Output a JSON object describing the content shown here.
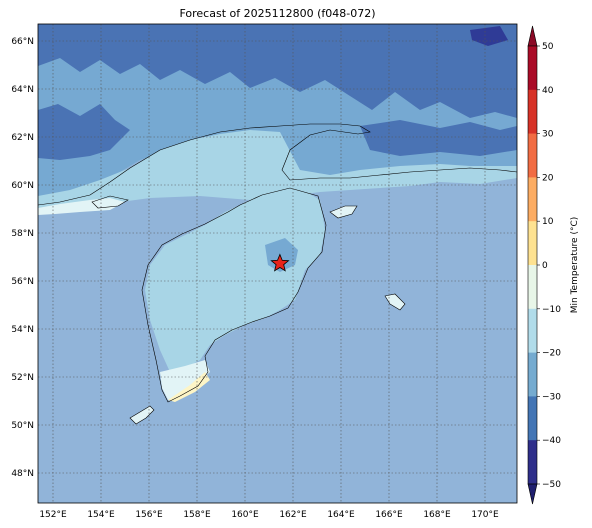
{
  "title": "Forecast of 2025112800 (f048-072)",
  "lon_ticks": [
    "152°E",
    "154°E",
    "156°E",
    "158°E",
    "160°E",
    "162°E",
    "164°E",
    "166°E",
    "168°E",
    "170°E"
  ],
  "lat_ticks": [
    "66°N",
    "64°N",
    "62°N",
    "60°N",
    "58°N",
    "56°N",
    "54°N",
    "52°N",
    "50°N",
    "48°N"
  ],
  "colorbar": {
    "label": "Min Temperature (°C)",
    "ticks": [
      "50",
      "40",
      "30",
      "20",
      "10",
      "0",
      "−10",
      "−20",
      "−30",
      "−40",
      "−50"
    ],
    "colors": [
      "#aa0b27",
      "#d73227",
      "#f16c43",
      "#fcac62",
      "#fee291",
      "#e8f6e8",
      "#b1dcea",
      "#75abd0",
      "#4375b5",
      "#2e2e8a"
    ]
  },
  "map": {
    "extent": {
      "lon_min": 151.3,
      "lon_max": 171.3,
      "lat_min": 46.7,
      "lat_max": 66.7
    },
    "marker": {
      "lon": 161.4,
      "lat": 56.7,
      "shape": "star",
      "color": "#e8231b"
    },
    "colors": {
      "deep": "#4a73b4",
      "mid": "#76a9d2",
      "light": "#a8d5e6",
      "base": "#91b4d9",
      "pale": "#e2f4f6",
      "warm": "#fdf5c6",
      "darkest": "#2f3b96"
    }
  }
}
